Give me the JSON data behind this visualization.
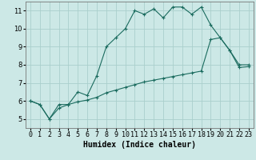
{
  "xlabel": "Humidex (Indice chaleur)",
  "background_color": "#cce8e6",
  "grid_color": "#aacfcc",
  "line_color": "#1a6b5e",
  "x_values": [
    0,
    1,
    2,
    3,
    4,
    5,
    6,
    7,
    8,
    9,
    10,
    11,
    12,
    13,
    14,
    15,
    16,
    17,
    18,
    19,
    20,
    21,
    22,
    23
  ],
  "curve1": [
    6.0,
    5.8,
    5.0,
    5.8,
    5.8,
    6.5,
    6.3,
    7.4,
    9.0,
    9.5,
    10.0,
    11.0,
    10.8,
    11.1,
    10.6,
    11.2,
    11.2,
    10.8,
    11.2,
    10.2,
    9.5,
    8.8,
    8.0,
    8.0
  ],
  "curve2": [
    6.0,
    5.8,
    5.0,
    5.6,
    5.8,
    5.95,
    6.05,
    6.2,
    6.45,
    6.6,
    6.75,
    6.9,
    7.05,
    7.15,
    7.25,
    7.35,
    7.45,
    7.55,
    7.65,
    9.4,
    9.5,
    8.8,
    7.85,
    7.9
  ],
  "ylim": [
    4.5,
    11.5
  ],
  "xlim": [
    -0.5,
    23.5
  ],
  "yticks": [
    5,
    6,
    7,
    8,
    9,
    10,
    11
  ],
  "xticks": [
    0,
    1,
    2,
    3,
    4,
    5,
    6,
    7,
    8,
    9,
    10,
    11,
    12,
    13,
    14,
    15,
    16,
    17,
    18,
    19,
    20,
    21,
    22,
    23
  ],
  "xtick_labels": [
    "0",
    "1",
    "2",
    "3",
    "4",
    "5",
    "6",
    "7",
    "8",
    "9",
    "10",
    "11",
    "12",
    "13",
    "14",
    "15",
    "16",
    "17",
    "18",
    "19",
    "20",
    "21",
    "22",
    "23"
  ],
  "fontsize_label": 7,
  "fontsize_tick": 6
}
